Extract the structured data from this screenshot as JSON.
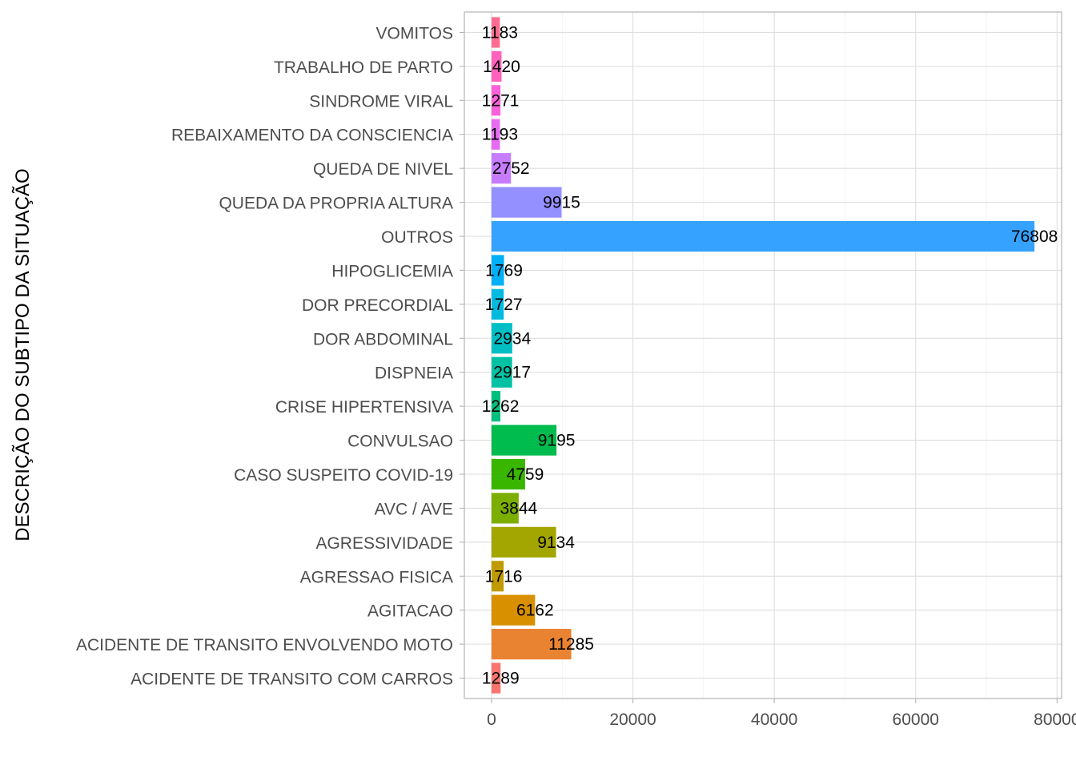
{
  "chart_data": {
    "type": "bar",
    "orientation": "horizontal",
    "ylabel": "DESCRIÇÃO DO SUBTIPO DA SITUAÇÃO",
    "xlabel": "",
    "categories": [
      "ACIDENTE DE TRANSITO COM CARROS",
      "ACIDENTE DE TRANSITO ENVOLVENDO MOTO",
      "AGITACAO",
      "AGRESSAO FISICA",
      "AGRESSIVIDADE",
      "AVC / AVE",
      "CASO SUSPEITO COVID-19",
      "CONVULSAO",
      "CRISE HIPERTENSIVA",
      "DISPNEIA",
      "DOR ABDOMINAL",
      "DOR PRECORDIAL",
      "HIPOGLICEMIA",
      "OUTROS",
      "QUEDA DA PROPRIA ALTURA",
      "QUEDA DE NIVEL",
      "REBAIXAMENTO DA CONSCIENCIA",
      "SINDROME VIRAL",
      "TRABALHO DE PARTO",
      "VOMITOS"
    ],
    "values": [
      1289,
      11285,
      6162,
      1716,
      9134,
      3844,
      4759,
      9195,
      1262,
      2917,
      2934,
      1727,
      1769,
      76808,
      9915,
      2752,
      1193,
      1271,
      1420,
      1183
    ],
    "colors": [
      "#F8766D",
      "#EA8331",
      "#D89000",
      "#C09B00",
      "#A3A500",
      "#7CAE00",
      "#39B600",
      "#00BB4E",
      "#00BF7D",
      "#00C1A3",
      "#00BFC4",
      "#00BAE0",
      "#00B0F6",
      "#35A2FF",
      "#9590FF",
      "#C77CFF",
      "#E76BF3",
      "#FA62DB",
      "#FF62BC",
      "#FF6C91"
    ],
    "x_ticks": [
      "0",
      "20000",
      "40000",
      "60000",
      "80000"
    ],
    "xlim": [
      -3840,
      80640
    ],
    "grid": true,
    "legend": "none"
  }
}
